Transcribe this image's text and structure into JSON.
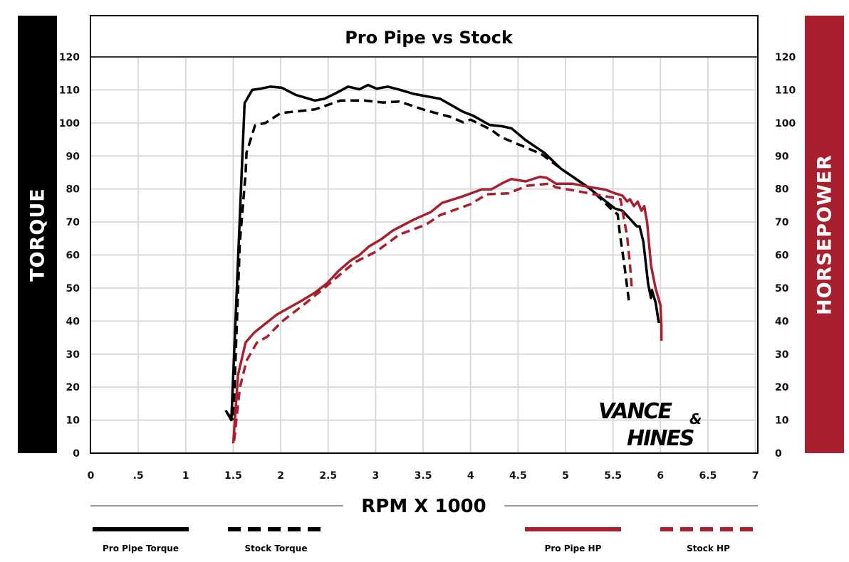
{
  "chart_data": {
    "type": "line",
    "title": "Pro Pipe vs Stock",
    "xlabel": "RPM X 1000",
    "ylabel_left": "TORQUE",
    "ylabel_right": "HORSEPOWER",
    "xlim": [
      0,
      7
    ],
    "ylim": [
      0,
      120
    ],
    "grid": true,
    "legend": "bottom",
    "x_ticks": [
      "0",
      ".5",
      "1",
      "1.5",
      "2",
      "2.5",
      "3",
      "3.5",
      "4",
      "4.5",
      "5",
      "5.5",
      "6",
      "6.5",
      "7"
    ],
    "y_ticks": [
      "120",
      "110",
      "100",
      "90",
      "80",
      "70",
      "60",
      "50",
      "40",
      "30",
      "20",
      "10",
      "0"
    ],
    "colors": {
      "torque": "#000000",
      "hp": "#a81f2e",
      "left_bar": "#000000",
      "right_bar": "#a81f2e",
      "grid": "#d9d9d9"
    },
    "series": [
      {
        "name": "Pro Pipe Torque",
        "axis": "left",
        "color": "#000000",
        "dashed": false,
        "x": [
          1.42,
          1.48,
          1.62,
          1.7,
          1.79,
          1.89,
          2.01,
          2.16,
          2.36,
          2.46,
          2.58,
          2.71,
          2.83,
          2.92,
          3.01,
          3.13,
          3.26,
          3.4,
          3.68,
          3.92,
          4.02,
          4.2,
          4.33,
          4.43,
          4.58,
          4.78,
          4.95,
          5.22,
          5.52,
          5.6,
          5.75,
          5.78,
          5.82,
          5.87,
          5.9,
          5.91,
          5.95,
          5.98,
          6.0
        ],
        "y": [
          13,
          10,
          106,
          110,
          110.4,
          111,
          110.7,
          108.5,
          106.8,
          107.3,
          109,
          111,
          110.2,
          111.5,
          110.4,
          111,
          110,
          108.8,
          107.3,
          103.4,
          102.3,
          99.4,
          99,
          98.4,
          94.8,
          90.9,
          86.2,
          80.9,
          74.1,
          73.4,
          68.7,
          68.7,
          64,
          51.2,
          47,
          49.4,
          45.5,
          39.8,
          39.8
        ]
      },
      {
        "name": "Stock Torque",
        "axis": "left",
        "color": "#000000",
        "dashed": true,
        "x": [
          1.44,
          1.5,
          1.57,
          1.63,
          1.64,
          1.73,
          1.84,
          2.0,
          2.36,
          2.63,
          2.88,
          3.08,
          3.25,
          3.53,
          3.78,
          3.92,
          4.0,
          4.22,
          4.32,
          4.54,
          4.75,
          4.95,
          5.27,
          5.5,
          5.55,
          5.57,
          5.62,
          5.67
        ],
        "y": [
          12,
          10,
          64,
          84.6,
          91,
          99.3,
          100,
          103,
          104.1,
          106.8,
          106.8,
          106.2,
          106.5,
          103.8,
          101.9,
          100.2,
          101,
          97.9,
          95.7,
          93.1,
          90.5,
          86.2,
          79.8,
          73.4,
          72.3,
          66.9,
          57,
          45.5
        ]
      },
      {
        "name": "Pro Pipe HP",
        "axis": "right",
        "color": "#a81f2e",
        "dashed": false,
        "x": [
          1.5,
          1.55,
          1.63,
          1.72,
          1.96,
          2.21,
          2.36,
          2.49,
          2.61,
          2.73,
          2.83,
          2.93,
          3.06,
          3.18,
          3.4,
          3.58,
          3.7,
          3.9,
          4.12,
          4.22,
          4.35,
          4.43,
          4.58,
          4.73,
          4.8,
          4.9,
          5.07,
          5.27,
          5.42,
          5.52,
          5.6,
          5.65,
          5.68,
          5.72,
          5.76,
          5.8,
          5.83,
          5.86,
          5.9,
          5.95,
          6.0,
          6.01,
          6.01
        ],
        "y": [
          3,
          23.6,
          33.5,
          36.5,
          42,
          46,
          48.6,
          51.5,
          55.2,
          58.2,
          60,
          62.6,
          64.8,
          67.4,
          70.7,
          73,
          75.8,
          77.6,
          79.9,
          79.9,
          82,
          83,
          82.3,
          83.7,
          83.4,
          81.6,
          81.6,
          80.5,
          79.8,
          78.7,
          78,
          76.2,
          76.9,
          74.8,
          76.2,
          73.4,
          74.8,
          69.8,
          56.9,
          49.8,
          44.8,
          38.4,
          34
        ]
      },
      {
        "name": "Stock HP",
        "axis": "right",
        "color": "#a81f2e",
        "dashed": true,
        "x": [
          1.51,
          1.57,
          1.64,
          1.75,
          1.86,
          2.01,
          2.24,
          2.46,
          2.58,
          2.78,
          3.01,
          3.25,
          3.53,
          3.68,
          4.0,
          4.17,
          4.4,
          4.6,
          4.83,
          4.9,
          5.12,
          5.3,
          5.52,
          5.58,
          5.61,
          5.65,
          5.68,
          5.7
        ],
        "y": [
          3.8,
          19.9,
          28,
          33.5,
          35.3,
          39.8,
          44.9,
          50,
          53,
          57.8,
          61.1,
          66.2,
          69.2,
          72.1,
          75.4,
          78.4,
          78.7,
          81,
          81.6,
          80.5,
          79.4,
          78.4,
          77.3,
          76.9,
          71.9,
          65.5,
          56.9,
          49.1
        ]
      }
    ]
  },
  "logo": {
    "line1": "VANCE",
    "amp": "&",
    "line2": "HINES"
  }
}
